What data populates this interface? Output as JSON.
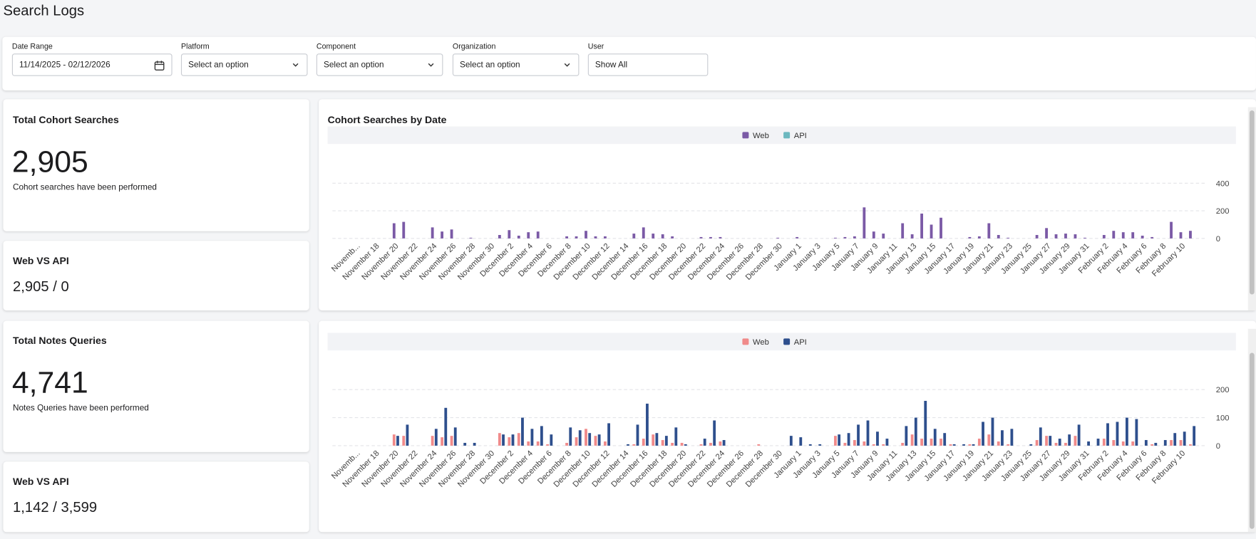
{
  "header": {
    "title": "Search Logs"
  },
  "filters": [
    {
      "label": "Date Range",
      "value": "11/14/2025 - 02/12/2026"
    },
    {
      "label": "Platform",
      "value": "Select an option"
    },
    {
      "label": "Component",
      "value": "Select an option"
    },
    {
      "label": "Organization",
      "value": "Select an option"
    },
    {
      "label": "User",
      "value": "Show All"
    }
  ],
  "stats": [
    {
      "title": "Total Cohort Searches",
      "value": "2,905",
      "caption": "Cohort searches have been performed"
    },
    {
      "title": "Web VS API",
      "value": "2,905 / 0"
    },
    {
      "title": "Total Notes Queries",
      "value": "4,741",
      "caption": "Notes Queries have been performed"
    },
    {
      "title": "Web VS API",
      "value": "1,142 / 3,599"
    }
  ],
  "chart_data": [
    {
      "type": "bar",
      "title": "Cohort Searches by Date",
      "categories": [
        null,
        null,
        "Novemb...",
        null,
        "November 18",
        null,
        "November 20",
        null,
        "November 22",
        null,
        "November 24",
        null,
        "November 26",
        null,
        "November 28",
        null,
        "November 30",
        null,
        "December 2",
        null,
        "December 4",
        null,
        "December 6",
        null,
        "December 8",
        null,
        "December 10",
        null,
        "December 12",
        null,
        "December 14",
        null,
        "December 16",
        null,
        "December 18",
        null,
        "December 20",
        null,
        "December 22",
        null,
        "December 24",
        null,
        "December 26",
        null,
        "December 28",
        null,
        "December 30",
        null,
        "January 1",
        null,
        "January 3",
        null,
        "January 5",
        null,
        "January 7",
        null,
        "January 9",
        null,
        "January 11",
        null,
        "January 13",
        null,
        "January 15",
        null,
        "January 17",
        null,
        "January 19",
        null,
        "January 21",
        null,
        "January 23",
        null,
        "January 25",
        null,
        "January 27",
        null,
        "January 29",
        null,
        "January 31",
        null,
        "February 2",
        null,
        "February 4",
        null,
        "February 6",
        null,
        "February 8",
        null,
        "February 10",
        null,
        null
      ],
      "series": [
        {
          "name": "Web",
          "color": "#7b5aa6",
          "values": [
            0,
            0,
            0,
            0,
            0,
            0,
            110,
            120,
            0,
            0,
            80,
            50,
            65,
            0,
            5,
            0,
            0,
            25,
            60,
            20,
            45,
            50,
            0,
            0,
            15,
            15,
            55,
            15,
            15,
            0,
            0,
            35,
            80,
            35,
            30,
            15,
            0,
            0,
            10,
            10,
            10,
            0,
            0,
            0,
            0,
            0,
            5,
            0,
            10,
            0,
            0,
            0,
            5,
            10,
            15,
            225,
            50,
            35,
            0,
            110,
            30,
            180,
            100,
            150,
            0,
            0,
            10,
            15,
            110,
            25,
            5,
            0,
            0,
            25,
            75,
            30,
            35,
            30,
            5,
            0,
            25,
            55,
            45,
            45,
            20,
            10,
            0,
            120,
            45,
            55,
            0
          ]
        },
        {
          "name": "API",
          "color": "#6cb8bf",
          "values": [
            0,
            0,
            0,
            0,
            0,
            0,
            0,
            0,
            0,
            0,
            0,
            0,
            0,
            0,
            0,
            0,
            0,
            0,
            0,
            0,
            0,
            0,
            0,
            0,
            0,
            0,
            0,
            0,
            0,
            0,
            0,
            0,
            0,
            0,
            0,
            0,
            0,
            0,
            0,
            0,
            0,
            0,
            0,
            0,
            0,
            0,
            0,
            0,
            0,
            0,
            0,
            0,
            0,
            0,
            0,
            0,
            0,
            0,
            0,
            0,
            0,
            0,
            0,
            0,
            0,
            0,
            0,
            0,
            0,
            0,
            0,
            0,
            0,
            0,
            0,
            0,
            0,
            0,
            0,
            0,
            0,
            0,
            0,
            0,
            0,
            0,
            0,
            0,
            0,
            0,
            0
          ]
        }
      ],
      "ylim": [
        0,
        400
      ],
      "yticks": [
        0,
        200,
        400
      ],
      "grid": true,
      "legend": "top"
    },
    {
      "type": "bar",
      "categories": [
        null,
        null,
        "Novemb...",
        null,
        "November 18",
        null,
        "November 20",
        null,
        "November 22",
        null,
        "November 24",
        null,
        "November 26",
        null,
        "November 28",
        null,
        "November 30",
        null,
        "December 2",
        null,
        "December 4",
        null,
        "December 6",
        null,
        "December 8",
        null,
        "December 10",
        null,
        "December 12",
        null,
        "December 14",
        null,
        "December 16",
        null,
        "December 18",
        null,
        "December 20",
        null,
        "December 22",
        null,
        "December 24",
        null,
        "December 26",
        null,
        "December 28",
        null,
        "December 30",
        null,
        "January 1",
        null,
        "January 3",
        null,
        "January 5",
        null,
        "January 7",
        null,
        "January 9",
        null,
        "January 11",
        null,
        "January 13",
        null,
        "January 15",
        null,
        "January 17",
        null,
        "January 19",
        null,
        "January 21",
        null,
        "January 23",
        null,
        "January 25",
        null,
        "January 27",
        null,
        "January 29",
        null,
        "January 31",
        null,
        "February 2",
        null,
        "February 4",
        null,
        "February 6",
        null,
        "February 8",
        null,
        "February 10",
        null,
        null
      ],
      "series": [
        {
          "name": "Web",
          "color": "#f08a8a",
          "values": [
            0,
            0,
            0,
            0,
            0,
            0,
            40,
            35,
            0,
            0,
            35,
            30,
            35,
            0,
            0,
            0,
            0,
            45,
            30,
            45,
            15,
            15,
            5,
            0,
            10,
            30,
            60,
            35,
            15,
            0,
            0,
            5,
            25,
            40,
            20,
            10,
            10,
            0,
            5,
            10,
            15,
            0,
            0,
            0,
            5,
            0,
            0,
            0,
            0,
            0,
            0,
            0,
            35,
            10,
            20,
            15,
            5,
            5,
            0,
            10,
            40,
            25,
            25,
            25,
            5,
            0,
            5,
            25,
            40,
            15,
            5,
            0,
            0,
            20,
            35,
            10,
            10,
            35,
            0,
            0,
            25,
            20,
            15,
            15,
            0,
            5,
            0,
            20,
            20,
            5,
            0
          ]
        },
        {
          "name": "API",
          "color": "#2e4f8d",
          "values": [
            0,
            0,
            0,
            0,
            0,
            0,
            35,
            75,
            0,
            0,
            60,
            135,
            65,
            10,
            10,
            0,
            0,
            40,
            40,
            100,
            60,
            70,
            40,
            0,
            65,
            55,
            45,
            40,
            80,
            0,
            5,
            75,
            150,
            45,
            35,
            65,
            5,
            0,
            25,
            90,
            20,
            0,
            0,
            0,
            0,
            0,
            0,
            35,
            30,
            5,
            5,
            0,
            40,
            45,
            75,
            90,
            50,
            25,
            0,
            70,
            100,
            160,
            60,
            45,
            5,
            5,
            5,
            85,
            100,
            55,
            60,
            0,
            5,
            65,
            35,
            25,
            40,
            75,
            15,
            25,
            80,
            85,
            100,
            95,
            20,
            10,
            20,
            45,
            50,
            70,
            0
          ]
        }
      ],
      "ylim": [
        0,
        200
      ],
      "yticks": [
        0,
        100,
        200
      ],
      "grid": true,
      "legend": "top"
    }
  ]
}
